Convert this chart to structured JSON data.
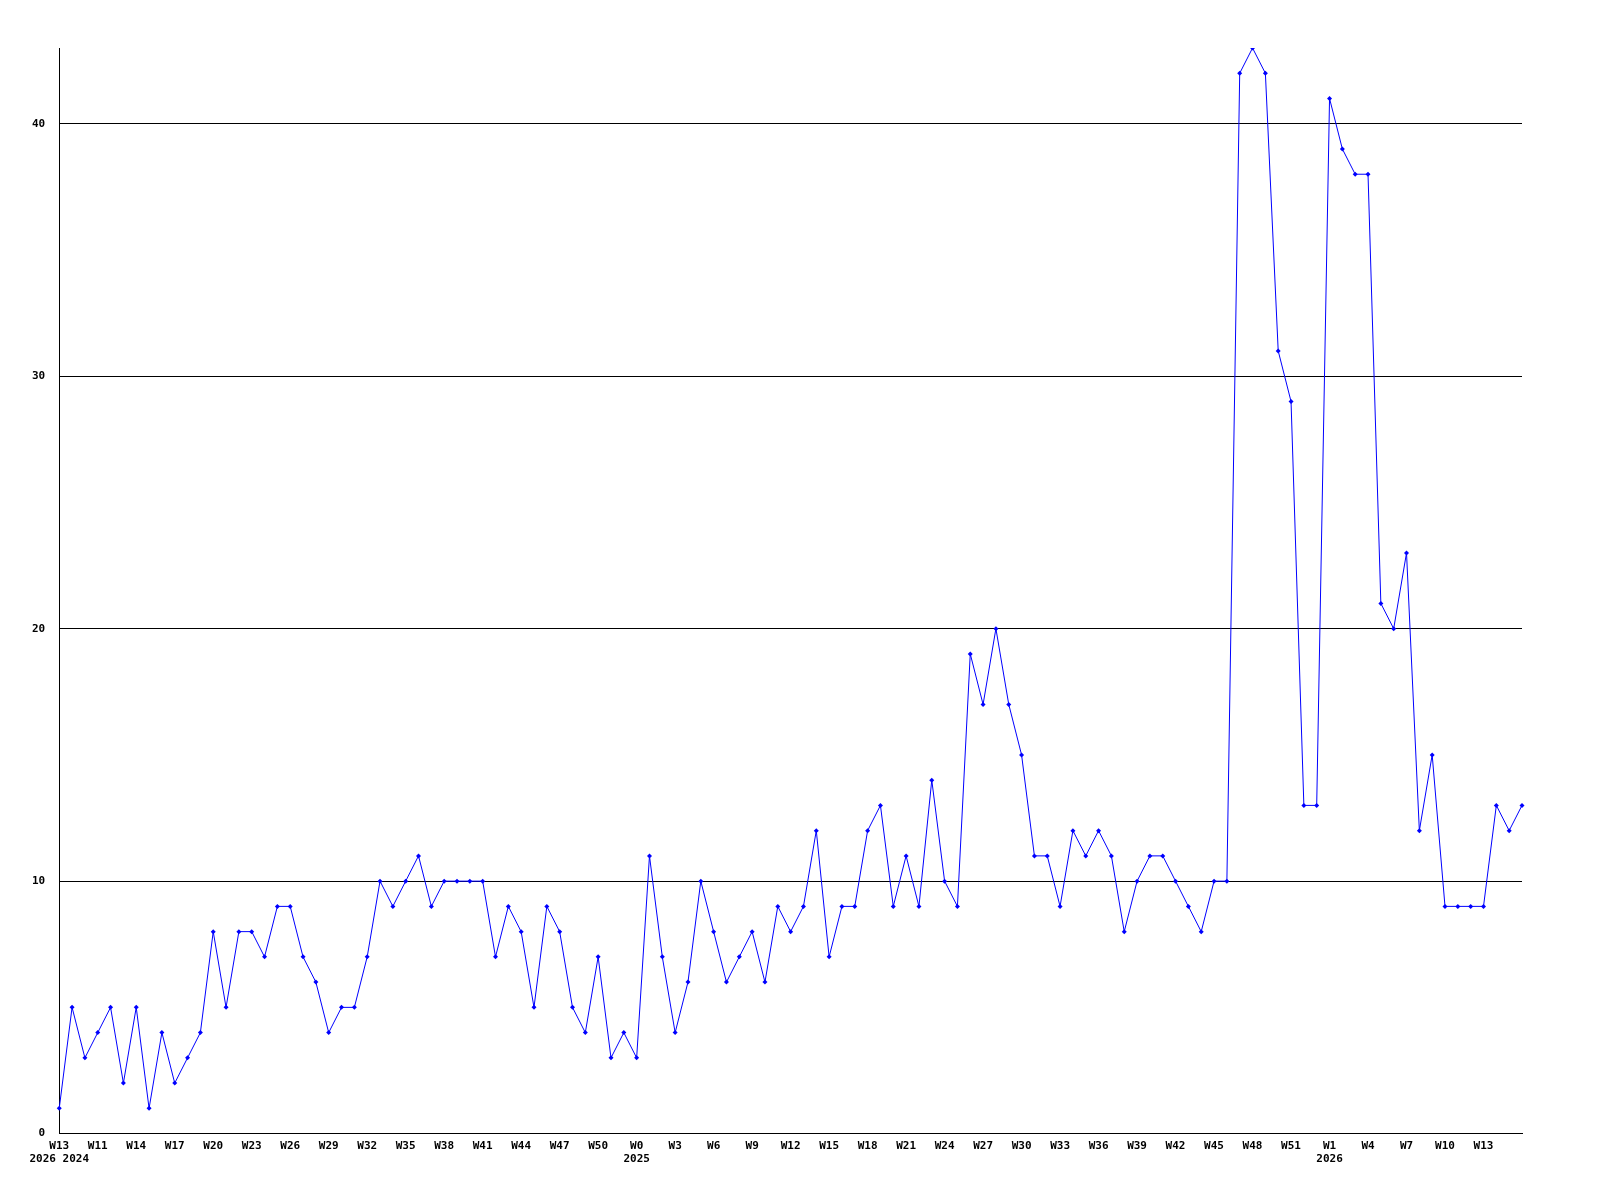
{
  "chart_data": {
    "type": "line",
    "categories": [
      "W13\n2026 2024",
      null,
      null,
      "W11",
      null,
      null,
      "W14",
      null,
      null,
      "W17",
      null,
      null,
      "W20",
      null,
      null,
      "W23",
      null,
      null,
      "W26",
      null,
      null,
      "W29",
      null,
      null,
      "W32",
      null,
      null,
      "W35",
      null,
      null,
      "W38",
      null,
      null,
      "W41",
      null,
      null,
      "W44",
      null,
      null,
      "W47",
      null,
      null,
      "W50",
      null,
      null,
      "W0\n2025",
      null,
      null,
      "W3",
      null,
      null,
      "W6",
      null,
      null,
      "W9",
      null,
      null,
      "W12",
      null,
      null,
      "W15",
      null,
      null,
      "W18",
      null,
      null,
      "W21",
      null,
      null,
      "W24",
      null,
      null,
      "W27",
      null,
      null,
      "W30",
      null,
      null,
      "W33",
      null,
      null,
      "W36",
      null,
      null,
      "W39",
      null,
      null,
      "W42",
      null,
      null,
      "W45",
      null,
      null,
      "W48",
      null,
      null,
      "W51",
      null,
      null,
      "W1\n2026",
      null,
      null,
      "W4",
      null,
      null,
      "W7",
      null,
      null,
      "W10",
      null,
      null,
      "W13",
      null,
      null,
      null
    ],
    "series": [
      {
        "color": "#0000ff",
        "values": [
          1,
          5,
          3,
          4,
          5,
          2,
          5,
          1,
          4,
          2,
          3,
          4,
          8,
          5,
          8,
          8,
          7,
          9,
          9,
          7,
          6,
          4,
          5,
          5,
          7,
          10,
          9,
          10,
          11,
          9,
          10,
          10,
          10,
          10,
          7,
          9,
          8,
          5,
          9,
          8,
          5,
          4,
          7,
          3,
          4,
          3,
          11,
          7,
          4,
          6,
          10,
          8,
          6,
          7,
          8,
          6,
          9,
          8,
          9,
          12,
          7,
          9,
          9,
          12,
          13,
          9,
          11,
          9,
          14,
          10,
          9,
          19,
          17,
          20,
          17,
          15,
          11,
          11,
          9,
          12,
          11,
          12,
          11,
          8,
          10,
          11,
          11,
          10,
          9,
          8,
          10,
          10,
          42,
          43,
          42,
          31,
          29,
          13,
          13,
          41,
          39,
          38,
          38,
          21,
          20,
          23,
          12,
          15,
          9,
          9,
          9,
          9,
          13,
          12,
          13
        ]
      }
    ],
    "ylim": [
      0,
      43
    ],
    "yticks": [
      0,
      10,
      20,
      30,
      40
    ],
    "grid": "y",
    "legend": false,
    "marker": "diamond",
    "line_style": "solid"
  }
}
